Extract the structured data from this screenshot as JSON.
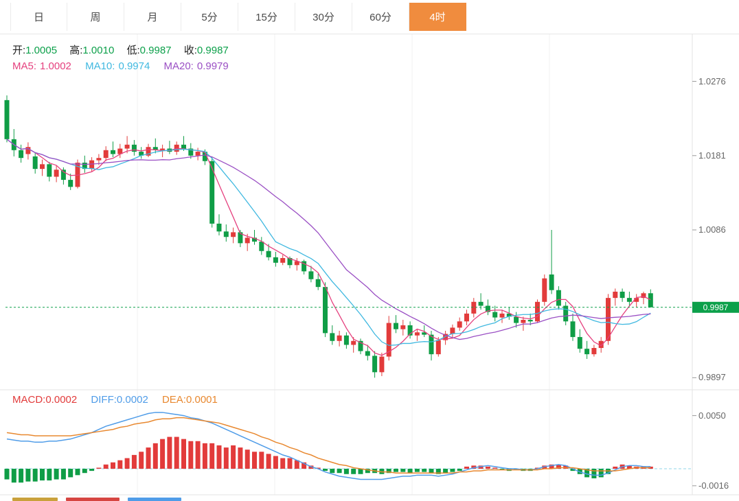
{
  "toolbar": {
    "tabs": [
      "日",
      "周",
      "月",
      "5分",
      "15分",
      "30分",
      "60分",
      "4时"
    ],
    "active_index": 7
  },
  "main_panel": {
    "ohlc": {
      "open_label": "开:",
      "open": "1.0005",
      "high_label": "高:",
      "high": "1.0010",
      "low_label": "低:",
      "low": "0.9987",
      "close_label": "收:",
      "close": "0.9987"
    },
    "ma5_label": "MA5:",
    "ma5_value": "1.0002",
    "ma10_label": "MA10:",
    "ma10_value": "0.9974",
    "ma20_label": "MA20:",
    "ma20_value": "0.9979"
  },
  "macd_panel": {
    "macd_label": "MACD:",
    "macd_value": "0.0002",
    "diff_label": "DIFF:",
    "diff_value": "0.0002",
    "dea_label": "DEA:",
    "dea_value": "0.0001"
  },
  "colors": {
    "up": "#e23b3b",
    "down": "#0f9d46",
    "ma5": "#e5407e",
    "ma10": "#3fb8e0",
    "ma20": "#9a4fc4",
    "diff_line": "#4f9ce8",
    "dea_line": "#e8882f",
    "macd_legend": "#e23b3b",
    "price_line": "#0ca04a",
    "ohlc_value": "#0ca04a",
    "tab_active_bg": "#f08c3e",
    "axis_text": "#666666"
  },
  "chart_data": {
    "type": "candlestick",
    "timeframe": "4时",
    "grid": "light vertical gridlines, right-side price axis",
    "legend_position": "top-left inside each panel",
    "price_axis": {
      "min": 0.9885,
      "max": 1.033,
      "ticks": [
        "1.0276",
        "1.0181",
        "1.0086",
        "0.9897"
      ],
      "current": "0.9987"
    },
    "candles": [
      [
        1.0252,
        1.0258,
        1.0198,
        1.0202
      ],
      [
        1.0202,
        1.0215,
        1.018,
        1.0188
      ],
      [
        1.0188,
        1.0195,
        1.0172,
        1.0178
      ],
      [
        1.0183,
        1.0198,
        1.0176,
        1.0192
      ],
      [
        1.018,
        1.0185,
        1.0158,
        1.0164
      ],
      [
        1.0164,
        1.0176,
        1.0155,
        1.017
      ],
      [
        1.017,
        1.0173,
        1.0148,
        1.0154
      ],
      [
        1.0154,
        1.0168,
        1.0147,
        1.0163
      ],
      [
        1.0163,
        1.0166,
        1.0144,
        1.015
      ],
      [
        1.015,
        1.0158,
        1.0137,
        1.0141
      ],
      [
        1.0141,
        1.0176,
        1.0139,
        1.0172
      ],
      [
        1.0172,
        1.0181,
        1.0159,
        1.0164
      ],
      [
        1.0164,
        1.0179,
        1.0161,
        1.0175
      ],
      [
        1.0175,
        1.0183,
        1.0169,
        1.0178
      ],
      [
        1.0178,
        1.0193,
        1.0174,
        1.0188
      ],
      [
        1.0188,
        1.0199,
        1.0179,
        1.0183
      ],
      [
        1.0183,
        1.0196,
        1.0178,
        1.019
      ],
      [
        1.019,
        1.0206,
        1.0184,
        1.0195
      ],
      [
        1.0195,
        1.0201,
        1.0181,
        1.0186
      ],
      [
        1.0186,
        1.0192,
        1.0177,
        1.0181
      ],
      [
        1.0181,
        1.0196,
        1.0179,
        1.0192
      ],
      [
        1.0192,
        1.0203,
        1.0184,
        1.0188
      ],
      [
        1.0188,
        1.0195,
        1.0179,
        1.019
      ],
      [
        1.019,
        1.02,
        1.0183,
        1.0186
      ],
      [
        1.0186,
        1.0199,
        1.0182,
        1.0195
      ],
      [
        1.0195,
        1.0206,
        1.0187,
        1.019
      ],
      [
        1.019,
        1.0197,
        1.0177,
        1.0181
      ],
      [
        1.0181,
        1.0191,
        1.0175,
        1.0186
      ],
      [
        1.0186,
        1.0189,
        1.0169,
        1.0174
      ],
      [
        1.0174,
        1.0179,
        1.0089,
        1.0094
      ],
      [
        1.0094,
        1.0106,
        1.0079,
        1.0084
      ],
      [
        1.0084,
        1.0093,
        1.0071,
        1.0077
      ],
      [
        1.0077,
        1.0089,
        1.0069,
        1.0083
      ],
      [
        1.0083,
        1.0086,
        1.0064,
        1.0069
      ],
      [
        1.0069,
        1.0081,
        1.0059,
        1.0076
      ],
      [
        1.0076,
        1.0086,
        1.0067,
        1.0071
      ],
      [
        1.0071,
        1.0077,
        1.0054,
        1.0059
      ],
      [
        1.0059,
        1.0068,
        1.0047,
        1.0051
      ],
      [
        1.0051,
        1.0058,
        1.0039,
        1.0044
      ],
      [
        1.0044,
        1.0054,
        1.0041,
        1.005
      ],
      [
        1.005,
        1.0052,
        1.0037,
        1.0041
      ],
      [
        1.0041,
        1.005,
        1.0034,
        1.0046
      ],
      [
        1.0046,
        1.0048,
        1.0029,
        1.0033
      ],
      [
        1.0033,
        1.004,
        1.0019,
        1.0023
      ],
      [
        1.0023,
        1.003,
        1.0009,
        1.0013
      ],
      [
        1.0013,
        1.0019,
        0.9949,
        0.9954
      ],
      [
        0.9954,
        0.9964,
        0.9939,
        0.9944
      ],
      [
        0.9944,
        0.9957,
        0.9937,
        0.9951
      ],
      [
        0.9951,
        0.9955,
        0.9934,
        0.9939
      ],
      [
        0.9939,
        0.9949,
        0.9929,
        0.9944
      ],
      [
        0.9944,
        0.9947,
        0.9927,
        0.9931
      ],
      [
        0.9931,
        0.9939,
        0.9919,
        0.9925
      ],
      [
        0.9925,
        0.9931,
        0.9897,
        0.9904
      ],
      [
        0.9904,
        0.9929,
        0.9899,
        0.9924
      ],
      [
        0.9924,
        0.9976,
        0.9919,
        0.9967
      ],
      [
        0.9967,
        0.9977,
        0.9954,
        0.9959
      ],
      [
        0.9959,
        0.9971,
        0.9951,
        0.9964
      ],
      [
        0.9964,
        0.9969,
        0.9947,
        0.9951
      ],
      [
        0.9951,
        0.9959,
        0.9944,
        0.9955
      ],
      [
        0.9955,
        0.9964,
        0.9949,
        0.9952
      ],
      [
        0.9952,
        0.9957,
        0.9919,
        0.9927
      ],
      [
        0.9927,
        0.9949,
        0.9924,
        0.9945
      ],
      [
        0.9945,
        0.9957,
        0.9939,
        0.9953
      ],
      [
        0.9953,
        0.9965,
        0.9947,
        0.9961
      ],
      [
        0.9961,
        0.9974,
        0.9957,
        0.9969
      ],
      [
        0.9969,
        0.9984,
        0.9964,
        0.9979
      ],
      [
        0.9979,
        0.9999,
        0.9974,
        0.9994
      ],
      [
        0.9994,
        1.0005,
        0.9984,
        0.9989
      ],
      [
        0.9989,
        0.9997,
        0.9977,
        0.9981
      ],
      [
        0.9981,
        0.9989,
        0.9969,
        0.9974
      ],
      [
        0.9974,
        0.9984,
        0.9967,
        0.9979
      ],
      [
        0.9979,
        0.9987,
        0.9971,
        0.9975
      ],
      [
        0.9975,
        0.9981,
        0.9961,
        0.9967
      ],
      [
        0.9967,
        0.9975,
        0.9957,
        0.9971
      ],
      [
        0.9971,
        0.9979,
        0.9964,
        0.9969
      ],
      [
        0.9969,
        0.9997,
        0.9967,
        0.9994
      ],
      [
        0.9994,
        1.0029,
        0.9989,
        1.0024
      ],
      [
        1.0029,
        1.0086,
        1.0004,
        1.0009
      ],
      [
        1.0009,
        1.0014,
        0.9984,
        0.9989
      ],
      [
        0.9989,
        0.9994,
        0.9964,
        0.9969
      ],
      [
        0.9969,
        0.9979,
        0.9944,
        0.9949
      ],
      [
        0.9949,
        0.9959,
        0.9929,
        0.9934
      ],
      [
        0.9934,
        0.9944,
        0.9921,
        0.9927
      ],
      [
        0.9927,
        0.9939,
        0.9924,
        0.9935
      ],
      [
        0.9935,
        0.9949,
        0.9929,
        0.9944
      ],
      [
        0.9944,
        1.0004,
        0.9939,
        0.9999
      ],
      [
        0.9999,
        1.0011,
        0.9989,
        1.0007
      ],
      [
        1.0007,
        1.0011,
        0.9994,
        0.9999
      ],
      [
        0.9999,
        1.0007,
        0.9989,
        0.9994
      ],
      [
        0.9994,
        1.0004,
        0.9987,
        0.9999
      ],
      [
        0.9999,
        1.0007,
        0.9991,
        1.0005
      ],
      [
        1.0005,
        1.001,
        0.9987,
        0.9987
      ]
    ],
    "ma_periods": [
      5,
      10,
      20
    ],
    "macd": {
      "axis": {
        "min": -0.002,
        "max": 0.0062,
        "ticks": [
          "0.0050",
          "-0.0016"
        ]
      },
      "diff": [
        0.0028,
        0.0027,
        0.0026,
        0.0026,
        0.0025,
        0.0025,
        0.0026,
        0.0026,
        0.0027,
        0.0028,
        0.003,
        0.0032,
        0.0034,
        0.0037,
        0.004,
        0.0042,
        0.0044,
        0.0046,
        0.0048,
        0.005,
        0.0052,
        0.0053,
        0.0053,
        0.0052,
        0.0051,
        0.005,
        0.0048,
        0.0047,
        0.0045,
        0.0043,
        0.004,
        0.0037,
        0.0034,
        0.0031,
        0.0028,
        0.0025,
        0.0022,
        0.0019,
        0.0016,
        0.0013,
        0.0011,
        0.0008,
        0.0005,
        0.0002,
        0.0,
        -0.0003,
        -0.0005,
        -0.0007,
        -0.0008,
        -0.0009,
        -0.001,
        -0.001,
        -0.001,
        -0.001,
        -0.0009,
        -0.0008,
        -0.0007,
        -0.0007,
        -0.0006,
        -0.0006,
        -0.0006,
        -0.0007,
        -0.0006,
        -0.0005,
        -0.0003,
        -0.0001,
        0.0001,
        0.0002,
        0.0003,
        0.0002,
        0.0001,
        0.0,
        0.0,
        -0.0001,
        -0.0001,
        0.0,
        0.0002,
        0.0003,
        0.0004,
        0.0003,
        0.0,
        -0.0003,
        -0.0005,
        -0.0006,
        -0.0006,
        -0.0004,
        -0.0001,
        0.0002,
        0.0003,
        0.0003,
        0.0002,
        0.0002
      ],
      "dea": [
        0.0034,
        0.0033,
        0.0032,
        0.0032,
        0.0031,
        0.0031,
        0.0031,
        0.0031,
        0.0031,
        0.0031,
        0.0032,
        0.0033,
        0.0034,
        0.0035,
        0.0036,
        0.0037,
        0.0039,
        0.004,
        0.0042,
        0.0043,
        0.0044,
        0.0046,
        0.0047,
        0.0047,
        0.0048,
        0.0048,
        0.0047,
        0.0046,
        0.0045,
        0.0044,
        0.0043,
        0.0041,
        0.0039,
        0.0037,
        0.0035,
        0.0033,
        0.003,
        0.0028,
        0.0025,
        0.0023,
        0.002,
        0.0018,
        0.0015,
        0.0013,
        0.001,
        0.0008,
        0.0006,
        0.0004,
        0.0003,
        0.0001,
        0.0,
        -0.0001,
        -0.0002,
        -0.0003,
        -0.0003,
        -0.0004,
        -0.0004,
        -0.0004,
        -0.0004,
        -0.0004,
        -0.0004,
        -0.0004,
        -0.0004,
        -0.0004,
        -0.0003,
        -0.0003,
        -0.0002,
        -0.0002,
        -0.0001,
        -0.0001,
        -0.0001,
        -0.0001,
        -0.0001,
        -0.0001,
        -0.0001,
        -0.0001,
        0.0,
        0.0,
        0.0001,
        0.0001,
        0.0001,
        0.0,
        -0.0001,
        -0.0002,
        -0.0002,
        -0.0002,
        -0.0002,
        -0.0001,
        0.0,
        0.0001,
        0.0001,
        0.0001
      ],
      "hist": [
        -0.001,
        -0.0013,
        -0.0013,
        -0.0012,
        -0.0012,
        -0.0011,
        -0.0011,
        -0.001,
        -0.001,
        -0.0008,
        -0.0006,
        -0.0004,
        -0.0002,
        0.0001,
        0.0004,
        0.0006,
        0.0008,
        0.001,
        0.0013,
        0.0016,
        0.002,
        0.0024,
        0.0028,
        0.003,
        0.003,
        0.0028,
        0.0026,
        0.0026,
        0.0024,
        0.0024,
        0.0022,
        0.002,
        0.0022,
        0.002,
        0.0018,
        0.0016,
        0.0016,
        0.0014,
        0.0012,
        0.001,
        0.001,
        0.0008,
        0.0006,
        0.0003,
        0.0001,
        -0.0002,
        -0.0004,
        -0.0004,
        -0.0005,
        -0.0005,
        -0.0005,
        -0.0004,
        -0.0004,
        -0.0005,
        -0.0004,
        -0.0003,
        -0.0003,
        -0.0004,
        -0.0003,
        -0.0003,
        -0.0004,
        -0.0005,
        -0.0004,
        -0.0003,
        -0.0002,
        0.0002,
        0.0003,
        0.0003,
        0.0002,
        0.0001,
        -0.0001,
        -0.0002,
        -0.0001,
        -0.0002,
        -0.0002,
        0.0001,
        0.0003,
        0.0004,
        0.0004,
        0.0003,
        -0.0002,
        -0.0005,
        -0.0008,
        -0.0009,
        -0.0008,
        -0.0005,
        0.0002,
        0.0004,
        0.0003,
        0.0002,
        0.0002,
        0.0002
      ]
    }
  }
}
